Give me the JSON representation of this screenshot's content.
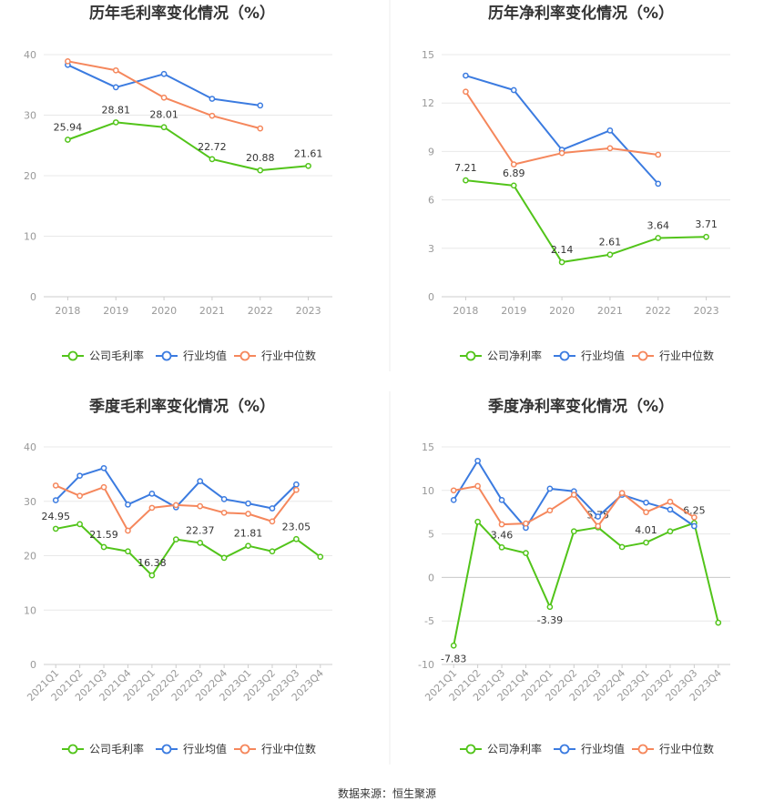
{
  "source_text": "数据来源：恒生聚源",
  "chart_data": [
    {
      "type": "line",
      "title": "历年毛利率变化情况（%）",
      "x": [
        "2018",
        "2019",
        "2020",
        "2021",
        "2022",
        "2023"
      ],
      "ylim": [
        0,
        40
      ],
      "yticks": [
        0,
        10,
        20,
        30,
        40
      ],
      "grid": true,
      "legend_position": "bottom",
      "series": [
        {
          "name": "公司毛利率",
          "color": "#52c41a",
          "values": [
            25.94,
            28.81,
            28.01,
            22.72,
            20.88,
            21.61
          ],
          "labels": [
            "25.94",
            "28.81",
            "28.01",
            "22.72",
            "20.88",
            "21.61"
          ]
        },
        {
          "name": "行业均值",
          "color": "#3b7be0",
          "values": [
            38.3,
            34.6,
            36.8,
            32.7,
            31.6,
            null
          ]
        },
        {
          "name": "行业中位数",
          "color": "#f5875c",
          "values": [
            38.9,
            37.4,
            32.9,
            29.9,
            27.8,
            null
          ]
        }
      ]
    },
    {
      "type": "line",
      "title": "历年净利率变化情况（%）",
      "x": [
        "2018",
        "2019",
        "2020",
        "2021",
        "2022",
        "2023"
      ],
      "ylim": [
        0,
        15
      ],
      "yticks": [
        0,
        3,
        6,
        9,
        12,
        15
      ],
      "grid": true,
      "legend_position": "bottom",
      "series": [
        {
          "name": "公司净利率",
          "color": "#52c41a",
          "values": [
            7.21,
            6.89,
            2.14,
            2.61,
            3.64,
            3.71
          ],
          "labels": [
            "7.21",
            "6.89",
            "2.14",
            "2.61",
            "3.64",
            "3.71"
          ]
        },
        {
          "name": "行业均值",
          "color": "#3b7be0",
          "values": [
            13.7,
            12.8,
            9.1,
            10.3,
            7.0,
            null
          ]
        },
        {
          "name": "行业中位数",
          "color": "#f5875c",
          "values": [
            12.7,
            8.2,
            8.9,
            9.2,
            8.8,
            null
          ]
        }
      ]
    },
    {
      "type": "line",
      "title": "季度毛利率变化情况（%）",
      "x": [
        "2021Q1",
        "2021Q2",
        "2021Q3",
        "2021Q4",
        "2022Q1",
        "2022Q2",
        "2022Q3",
        "2022Q4",
        "2023Q1",
        "2023Q2",
        "2023Q3",
        "2023Q4"
      ],
      "ylim": [
        0,
        40
      ],
      "yticks": [
        0,
        10,
        20,
        30,
        40
      ],
      "grid": true,
      "legend_position": "bottom",
      "series": [
        {
          "name": "公司毛利率",
          "color": "#52c41a",
          "values": [
            24.95,
            25.8,
            21.59,
            20.8,
            16.38,
            23.0,
            22.37,
            19.6,
            21.81,
            20.8,
            23.05,
            19.8
          ],
          "labels": [
            "24.95",
            "",
            "21.59",
            "",
            "16.38",
            "",
            "22.37",
            "",
            "21.81",
            "",
            "23.05",
            ""
          ]
        },
        {
          "name": "行业均值",
          "color": "#3b7be0",
          "values": [
            30.2,
            34.7,
            36.1,
            29.4,
            31.4,
            28.9,
            33.7,
            30.4,
            29.6,
            28.7,
            33.1,
            null
          ]
        },
        {
          "name": "行业中位数",
          "color": "#f5875c",
          "values": [
            32.9,
            31.0,
            32.6,
            24.6,
            28.8,
            29.3,
            29.1,
            27.9,
            27.7,
            26.3,
            32.1,
            null
          ]
        }
      ]
    },
    {
      "type": "line",
      "title": "季度净利率变化情况（%）",
      "x": [
        "2021Q1",
        "2021Q2",
        "2021Q3",
        "2021Q4",
        "2022Q1",
        "2022Q2",
        "2022Q3",
        "2022Q4",
        "2023Q1",
        "2023Q2",
        "2023Q3",
        "2023Q4"
      ],
      "ylim": [
        -10,
        15
      ],
      "yticks": [
        -10,
        -5,
        0,
        5,
        10,
        15
      ],
      "grid": true,
      "legend_position": "bottom",
      "series": [
        {
          "name": "公司净利率",
          "color": "#52c41a",
          "values": [
            -7.83,
            6.4,
            3.46,
            2.8,
            -3.39,
            5.3,
            5.75,
            3.5,
            4.01,
            5.3,
            6.25,
            -5.2
          ],
          "labels": [
            "-7.83",
            "",
            "3.46",
            "",
            "-3.39",
            "",
            "5.75",
            "",
            "4.01",
            "",
            "6.25",
            ""
          ]
        },
        {
          "name": "行业均值",
          "color": "#3b7be0",
          "values": [
            8.9,
            13.4,
            8.9,
            5.7,
            10.2,
            9.9,
            7.0,
            9.5,
            8.6,
            7.8,
            5.9,
            null
          ]
        },
        {
          "name": "行业中位数",
          "color": "#f5875c",
          "values": [
            10.0,
            10.5,
            6.1,
            6.2,
            7.7,
            9.5,
            5.9,
            9.7,
            7.5,
            8.7,
            6.9,
            null
          ]
        }
      ]
    }
  ]
}
